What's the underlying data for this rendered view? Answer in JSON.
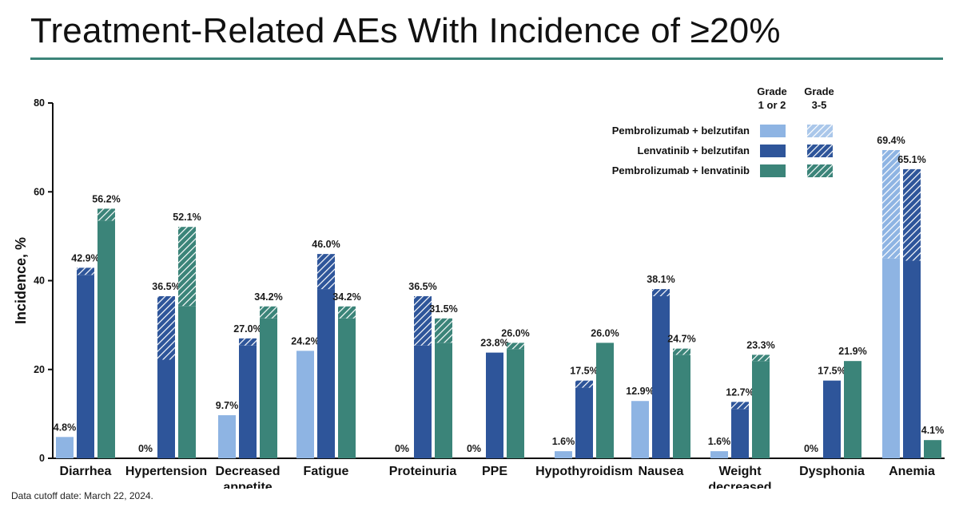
{
  "title": "Treatment-Related AEs With Incidence of ≥20%",
  "footnote": "Data cutoff date: March 22, 2024.",
  "colors": {
    "pembrolizumab_belzutifan": "#8eb4e3",
    "lenvatinib_belzutifan": "#2e559a",
    "pembrolizumab_lenvatinib": "#3b8479",
    "title_rule": "#3b8479"
  },
  "chart_data": {
    "type": "bar",
    "stacked_segments": [
      "Grade 1 or 2",
      "Grade 3-5"
    ],
    "ylabel": "Incidence, %",
    "ylim": [
      0,
      80
    ],
    "yticks": [
      0,
      20,
      40,
      60,
      80
    ],
    "legend": {
      "placement": "top-right",
      "column_headers": [
        "Grade\n1 or 2",
        "Grade\n3-5"
      ],
      "entries": [
        "Pembrolizumab + belzutifan",
        "Lenvatinib + belzutifan",
        "Pembrolizumab + lenvatinib"
      ]
    },
    "categories": [
      "Diarrhea",
      "Hypertension",
      "Decreased\nappetite",
      "Fatigue",
      "Proteinuria",
      "PPE",
      "Hypothyroidism",
      "Nausea",
      "Weight\ndecreased",
      "Dysphonia",
      "Anemia"
    ],
    "series": [
      {
        "name": "Pembrolizumab + belzutifan",
        "totals": [
          4.8,
          0,
          9.7,
          24.2,
          0,
          0,
          1.6,
          12.9,
          1.6,
          0,
          69.4
        ],
        "grade_3_5": [
          0,
          0,
          0,
          0,
          0,
          0,
          0,
          0,
          0,
          0,
          24.4
        ],
        "labels": [
          "4.8%",
          "0%",
          "9.7%",
          "24.2%",
          "0%",
          "0%",
          "1.6%",
          "12.9%",
          "1.6%",
          "0%",
          "69.4%"
        ]
      },
      {
        "name": "Lenvatinib + belzutifan",
        "totals": [
          42.9,
          36.5,
          27.0,
          46.0,
          36.5,
          23.8,
          17.5,
          38.1,
          12.7,
          17.5,
          65.1
        ],
        "grade_3_5": [
          1.6,
          14.3,
          1.6,
          7.9,
          11.1,
          0,
          1.6,
          1.6,
          1.6,
          0,
          20.6
        ],
        "labels": [
          "42.9%",
          "36.5%",
          "27.0%",
          "46.0%",
          "36.5%",
          "23.8%",
          "17.5%",
          "38.1%",
          "12.7%",
          "17.5%",
          "65.1%"
        ]
      },
      {
        "name": "Pembrolizumab + lenvatinib",
        "totals": [
          56.2,
          52.1,
          34.2,
          34.2,
          31.5,
          26.0,
          26.0,
          24.7,
          23.3,
          21.9,
          4.1
        ],
        "grade_3_5": [
          2.7,
          17.8,
          2.7,
          2.7,
          5.5,
          1.4,
          0,
          1.4,
          1.4,
          0,
          0
        ],
        "labels": [
          "56.2%",
          "52.1%",
          "34.2%",
          "34.2%",
          "31.5%",
          "26.0%",
          "26.0%",
          "24.7%",
          "23.3%",
          "21.9%",
          "4.1%"
        ]
      }
    ]
  }
}
